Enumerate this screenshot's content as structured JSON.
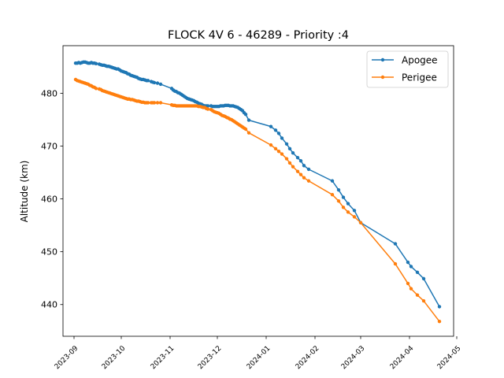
{
  "chart_data": {
    "type": "line",
    "title": "FLOCK 4V 6 - 46289 - Priority :4",
    "xlabel": "",
    "ylabel": "Altitude (km)",
    "xlim": [
      "2023-08-25",
      "2024-04-29"
    ],
    "ylim": [
      434,
      489
    ],
    "x_ticks": [
      "2023-09-01",
      "2023-10-01",
      "2023-11-01",
      "2023-12-01",
      "2024-01-01",
      "2024-02-01",
      "2024-03-01",
      "2024-04-01",
      "2024-05-01"
    ],
    "x_tick_labels": [
      "2023-09",
      "2023-10",
      "2023-11",
      "2023-12",
      "2024-01",
      "2024-02",
      "2024-03",
      "2024-04",
      "2024-05"
    ],
    "y_ticks": [
      440,
      450,
      460,
      470,
      480
    ],
    "y_tick_labels": [
      "440",
      "450",
      "460",
      "470",
      "480"
    ],
    "grid": false,
    "legend_position": "top-right",
    "series": [
      {
        "name": "Apogee",
        "color": "#1f77b4",
        "x": [
          "2023-09-02",
          "2023-09-03",
          "2023-09-04",
          "2023-09-05",
          "2023-09-06",
          "2023-09-07",
          "2023-09-08",
          "2023-09-09",
          "2023-09-10",
          "2023-09-11",
          "2023-09-12",
          "2023-09-13",
          "2023-09-14",
          "2023-09-15",
          "2023-09-17",
          "2023-09-18",
          "2023-09-19",
          "2023-09-20",
          "2023-09-21",
          "2023-09-22",
          "2023-09-23",
          "2023-09-24",
          "2023-09-25",
          "2023-09-26",
          "2023-09-27",
          "2023-09-28",
          "2023-09-29",
          "2023-09-30",
          "2023-10-01",
          "2023-10-02",
          "2023-10-03",
          "2023-10-04",
          "2023-10-05",
          "2023-10-06",
          "2023-10-07",
          "2023-10-08",
          "2023-10-09",
          "2023-10-10",
          "2023-10-11",
          "2023-10-12",
          "2023-10-13",
          "2023-10-14",
          "2023-10-15",
          "2023-10-16",
          "2023-10-17",
          "2023-10-18",
          "2023-10-20",
          "2023-10-21",
          "2023-10-22",
          "2023-10-24",
          "2023-10-26",
          "2023-11-02",
          "2023-11-03",
          "2023-11-04",
          "2023-11-05",
          "2023-11-06",
          "2023-11-07",
          "2023-11-08",
          "2023-11-09",
          "2023-11-10",
          "2023-11-11",
          "2023-11-12",
          "2023-11-13",
          "2023-11-14",
          "2023-11-15",
          "2023-11-16",
          "2023-11-17",
          "2023-11-18",
          "2023-11-19",
          "2023-11-20",
          "2023-11-21",
          "2023-11-22",
          "2023-11-23",
          "2023-11-24",
          "2023-11-25",
          "2023-11-27",
          "2023-11-28",
          "2023-11-29",
          "2023-11-30",
          "2023-12-01",
          "2023-12-02",
          "2023-12-03",
          "2023-12-04",
          "2023-12-05",
          "2023-12-06",
          "2023-12-07",
          "2023-12-08",
          "2023-12-09",
          "2023-12-10",
          "2023-12-11",
          "2023-12-12",
          "2023-12-13",
          "2023-12-14",
          "2023-12-15",
          "2023-12-16",
          "2023-12-17",
          "2023-12-18",
          "2023-12-19",
          "2023-12-21",
          "2024-01-04",
          "2024-01-07",
          "2024-01-09",
          "2024-01-11",
          "2024-01-14",
          "2024-01-16",
          "2024-01-18",
          "2024-01-21",
          "2024-01-23",
          "2024-01-25",
          "2024-01-28",
          "2024-02-12",
          "2024-02-16",
          "2024-02-19",
          "2024-02-22",
          "2024-02-26",
          "2024-03-01",
          "2024-03-23",
          "2024-03-31",
          "2024-04-02",
          "2024-04-06",
          "2024-04-10",
          "2024-04-20"
        ],
        "y": [
          485.7,
          485.7,
          485.8,
          485.7,
          485.8,
          485.9,
          485.9,
          485.8,
          485.7,
          485.7,
          485.8,
          485.7,
          485.7,
          485.6,
          485.5,
          485.4,
          485.3,
          485.3,
          485.2,
          485.1,
          485.1,
          485.0,
          484.9,
          484.8,
          484.7,
          484.6,
          484.6,
          484.4,
          484.2,
          484.1,
          484.0,
          483.9,
          483.7,
          483.6,
          483.4,
          483.3,
          483.2,
          483.1,
          483.0,
          482.8,
          482.7,
          482.6,
          482.6,
          482.5,
          482.4,
          482.4,
          482.2,
          482.1,
          482.0,
          481.9,
          481.7,
          480.9,
          480.6,
          480.4,
          480.3,
          480.1,
          480.0,
          479.8,
          479.6,
          479.4,
          479.2,
          479.0,
          478.9,
          478.8,
          478.7,
          478.6,
          478.4,
          478.3,
          478.1,
          478.0,
          477.9,
          477.7,
          477.6,
          477.6,
          477.6,
          477.6,
          477.5,
          477.5,
          477.5,
          477.5,
          477.5,
          477.6,
          477.6,
          477.6,
          477.7,
          477.7,
          477.7,
          477.6,
          477.6,
          477.6,
          477.5,
          477.4,
          477.3,
          477.1,
          476.9,
          476.7,
          476.3,
          476.0,
          474.9,
          473.7,
          473.0,
          472.4,
          471.5,
          470.4,
          469.5,
          468.7,
          467.8,
          467.2,
          466.3,
          465.6,
          463.4,
          461.7,
          460.3,
          459.1,
          457.8,
          455.5,
          451.5,
          448.0,
          447.2,
          446.1,
          444.9,
          439.6
        ]
      },
      {
        "name": "Perigee",
        "color": "#ff7f0e",
        "x": [
          "2023-09-02",
          "2023-09-03",
          "2023-09-04",
          "2023-09-05",
          "2023-09-06",
          "2023-09-07",
          "2023-09-08",
          "2023-09-09",
          "2023-09-10",
          "2023-09-11",
          "2023-09-12",
          "2023-09-13",
          "2023-09-14",
          "2023-09-15",
          "2023-09-17",
          "2023-09-18",
          "2023-09-19",
          "2023-09-20",
          "2023-09-21",
          "2023-09-22",
          "2023-09-23",
          "2023-09-24",
          "2023-09-25",
          "2023-09-26",
          "2023-09-27",
          "2023-09-28",
          "2023-09-29",
          "2023-09-30",
          "2023-10-01",
          "2023-10-02",
          "2023-10-03",
          "2023-10-04",
          "2023-10-05",
          "2023-10-06",
          "2023-10-07",
          "2023-10-08",
          "2023-10-09",
          "2023-10-10",
          "2023-10-11",
          "2023-10-12",
          "2023-10-13",
          "2023-10-14",
          "2023-10-15",
          "2023-10-16",
          "2023-10-17",
          "2023-10-18",
          "2023-10-20",
          "2023-10-21",
          "2023-10-22",
          "2023-10-24",
          "2023-10-26",
          "2023-11-02",
          "2023-11-03",
          "2023-11-04",
          "2023-11-05",
          "2023-11-06",
          "2023-11-07",
          "2023-11-08",
          "2023-11-09",
          "2023-11-10",
          "2023-11-11",
          "2023-11-12",
          "2023-11-13",
          "2023-11-14",
          "2023-11-15",
          "2023-11-16",
          "2023-11-17",
          "2023-11-18",
          "2023-11-19",
          "2023-11-20",
          "2023-11-21",
          "2023-11-22",
          "2023-11-23",
          "2023-11-24",
          "2023-11-25",
          "2023-11-27",
          "2023-11-28",
          "2023-11-29",
          "2023-11-30",
          "2023-12-01",
          "2023-12-02",
          "2023-12-03",
          "2023-12-04",
          "2023-12-05",
          "2023-12-06",
          "2023-12-07",
          "2023-12-08",
          "2023-12-09",
          "2023-12-10",
          "2023-12-11",
          "2023-12-12",
          "2023-12-13",
          "2023-12-14",
          "2023-12-15",
          "2023-12-16",
          "2023-12-17",
          "2023-12-18",
          "2023-12-19",
          "2023-12-21",
          "2024-01-04",
          "2024-01-07",
          "2024-01-09",
          "2024-01-11",
          "2024-01-14",
          "2024-01-16",
          "2024-01-18",
          "2024-01-21",
          "2024-01-23",
          "2024-01-25",
          "2024-01-28",
          "2024-02-12",
          "2024-02-16",
          "2024-02-19",
          "2024-02-22",
          "2024-02-26",
          "2024-03-01",
          "2024-03-23",
          "2024-03-31",
          "2024-04-02",
          "2024-04-06",
          "2024-04-10",
          "2024-04-20"
        ],
        "y": [
          482.6,
          482.4,
          482.3,
          482.2,
          482.1,
          482.0,
          481.9,
          481.8,
          481.7,
          481.5,
          481.4,
          481.2,
          481.1,
          480.9,
          480.8,
          480.7,
          480.5,
          480.4,
          480.3,
          480.2,
          480.1,
          480.0,
          479.9,
          479.8,
          479.7,
          479.6,
          479.5,
          479.4,
          479.3,
          479.2,
          479.1,
          479.0,
          478.9,
          478.9,
          478.8,
          478.8,
          478.7,
          478.6,
          478.5,
          478.5,
          478.4,
          478.3,
          478.3,
          478.2,
          478.2,
          478.2,
          478.2,
          478.2,
          478.2,
          478.2,
          478.2,
          477.8,
          477.7,
          477.7,
          477.6,
          477.6,
          477.6,
          477.6,
          477.6,
          477.6,
          477.6,
          477.6,
          477.6,
          477.6,
          477.6,
          477.6,
          477.6,
          477.6,
          477.5,
          477.5,
          477.4,
          477.3,
          477.3,
          477.1,
          477.0,
          476.9,
          476.7,
          476.5,
          476.4,
          476.3,
          476.2,
          476.0,
          475.8,
          475.7,
          475.6,
          475.4,
          475.3,
          475.1,
          475.0,
          474.8,
          474.6,
          474.4,
          474.2,
          474.0,
          473.8,
          473.6,
          473.4,
          473.2,
          472.5,
          470.2,
          469.5,
          469.0,
          468.5,
          467.6,
          466.8,
          466.1,
          465.2,
          464.6,
          464.0,
          463.4,
          460.8,
          459.6,
          458.4,
          457.5,
          456.6,
          455.5,
          447.7,
          444.0,
          443.0,
          441.8,
          440.7,
          436.8
        ]
      }
    ]
  }
}
